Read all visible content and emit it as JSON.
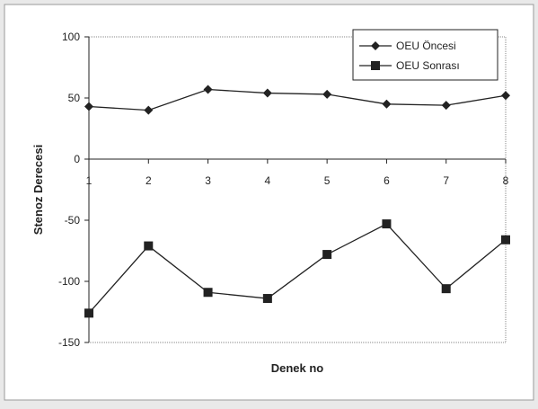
{
  "chart_data": {
    "type": "line",
    "title": "",
    "xlabel": "Denek no",
    "ylabel": "Stenoz Derecesi",
    "categories": [
      "1",
      "2",
      "3",
      "4",
      "5",
      "6",
      "7",
      "8"
    ],
    "ylim": [
      -150,
      100
    ],
    "yticks": [
      "100",
      "50",
      "0",
      "-50",
      "-100",
      "-150"
    ],
    "grid": false,
    "legend_position": "top-right",
    "series": [
      {
        "name": "OEU Öncesi",
        "marker": "diamond",
        "values": [
          43,
          40,
          57,
          54,
          53,
          45,
          44,
          52
        ]
      },
      {
        "name": "OEU Sonrası",
        "marker": "square",
        "values": [
          -126,
          -71,
          -109,
          -114,
          -78,
          -53,
          -106,
          -66
        ]
      }
    ],
    "colors": {
      "line": "#222222",
      "background": "#e9e9e9",
      "plot": "#ffffff"
    }
  }
}
